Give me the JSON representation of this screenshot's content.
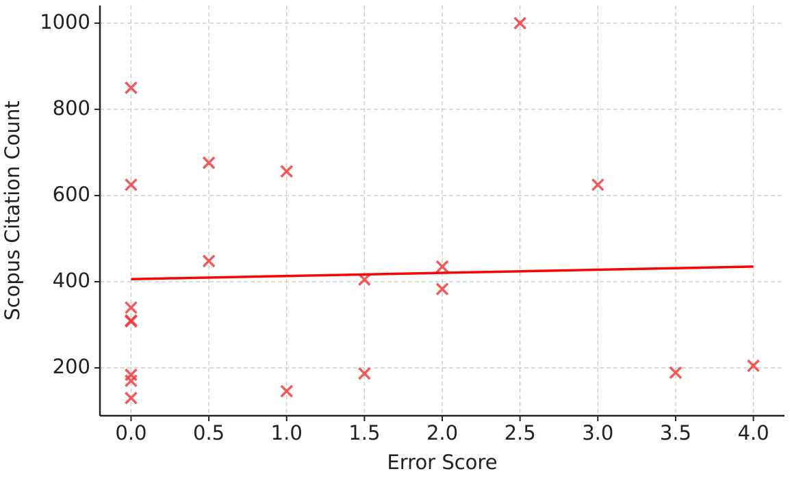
{
  "chart_data": {
    "type": "scatter",
    "xlabel": "Error Score",
    "ylabel": "Scopus Citation Count",
    "xlim": [
      -0.2,
      4.2
    ],
    "ylim": [
      89,
      1041
    ],
    "xticks": [
      {
        "value": 0,
        "label": "0.0"
      },
      0.5,
      {
        "value": 1,
        "label": "1.0"
      },
      1.5,
      {
        "value": 2,
        "label": "2.0"
      },
      2.5,
      {
        "value": 3,
        "label": "3.0"
      },
      3.5,
      {
        "value": 4,
        "label": "4.0"
      }
    ],
    "yticks": [
      200,
      400,
      600,
      800,
      1000
    ],
    "grid": true,
    "series": [
      {
        "type": "scatter",
        "color": "#f03c3c",
        "x": [
          0,
          0,
          0,
          0,
          0,
          0,
          0,
          0,
          0.5,
          0.5,
          1,
          1,
          1.5,
          1.5,
          2,
          2,
          2.5,
          3,
          3.5,
          4
        ],
        "values": [
          850,
          625,
          340,
          310,
          308,
          184,
          170,
          130,
          676,
          448,
          656,
          146,
          405,
          187,
          435,
          383,
          1000,
          625,
          189,
          205
        ]
      },
      {
        "type": "line",
        "color": "#ff0000",
        "x": [
          0,
          4
        ],
        "values": [
          406,
          435
        ]
      }
    ]
  }
}
